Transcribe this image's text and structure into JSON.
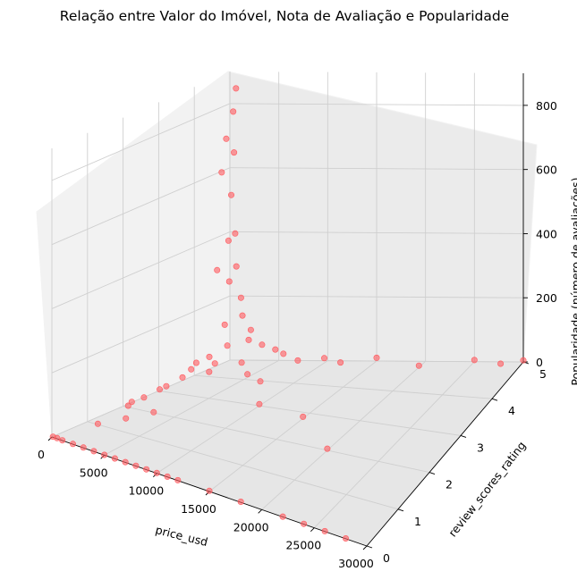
{
  "chart_data": {
    "type": "scatter",
    "projection": "3d",
    "title": "Relação entre Valor do Imóvel, Nota de Avaliação e Popularidade",
    "xlabel": "price_usd",
    "ylabel": "review_scores_rating",
    "zlabel": "Popularidade (número de avaliações)",
    "xlim": [
      0,
      30000
    ],
    "ylim": [
      0,
      5
    ],
    "zlim": [
      0,
      900
    ],
    "xticks": [
      "0",
      "5000",
      "10000",
      "15000",
      "20000",
      "25000",
      "30000"
    ],
    "yticks": [
      "0",
      "1",
      "2",
      "3",
      "4",
      "5"
    ],
    "zticks": [
      "0",
      "200",
      "400",
      "600",
      "800"
    ],
    "grid": true,
    "color": "#ff5a5f",
    "alpha": 0.6,
    "series": [
      {
        "description_points": [
          [
            100,
            4.9,
            50
          ],
          [
            200,
            4.8,
            120
          ],
          [
            300,
            4.9,
            250
          ],
          [
            400,
            4.85,
            380
          ],
          [
            500,
            4.9,
            520
          ],
          [
            600,
            4.95,
            650
          ],
          [
            700,
            4.9,
            780
          ],
          [
            800,
            4.95,
            850
          ],
          [
            250,
            4.7,
            600
          ],
          [
            350,
            4.8,
            700
          ],
          [
            150,
            4.6,
            300
          ],
          [
            900,
            4.9,
            400
          ],
          [
            1200,
            4.85,
            300
          ],
          [
            1500,
            4.9,
            200
          ],
          [
            2000,
            4.8,
            150
          ],
          [
            2500,
            4.9,
            100
          ],
          [
            3000,
            4.7,
            80
          ],
          [
            4000,
            4.8,
            60
          ],
          [
            5000,
            4.9,
            40
          ],
          [
            6000,
            4.85,
            30
          ],
          [
            8000,
            4.7,
            20
          ],
          [
            10000,
            4.9,
            15
          ],
          [
            12000,
            4.8,
            10
          ],
          [
            15000,
            5.0,
            10
          ],
          [
            20000,
            4.8,
            5
          ],
          [
            25000,
            5.0,
            5
          ],
          [
            28000,
            4.9,
            5
          ],
          [
            30000,
            5.0,
            5
          ],
          [
            200,
            4.0,
            40
          ],
          [
            400,
            3.8,
            30
          ],
          [
            600,
            3.5,
            20
          ],
          [
            800,
            4.2,
            50
          ],
          [
            1000,
            4.3,
            25
          ],
          [
            1500,
            4.0,
            15
          ],
          [
            3000,
            4.5,
            20
          ],
          [
            5000,
            4.1,
            10
          ],
          [
            7000,
            3.9,
            5
          ],
          [
            10000,
            3.0,
            5
          ],
          [
            15000,
            2.8,
            5
          ],
          [
            20000,
            2.0,
            5
          ],
          [
            100,
            3.0,
            5
          ],
          [
            300,
            2.5,
            5
          ],
          [
            500,
            2.0,
            5
          ],
          [
            150,
            2.2,
            5
          ],
          [
            50,
            3.2,
            5
          ],
          [
            100,
            0,
            2
          ],
          [
            500,
            0,
            2
          ],
          [
            1000,
            0,
            1
          ],
          [
            2000,
            0,
            1
          ],
          [
            3000,
            0,
            1
          ],
          [
            4000,
            0,
            1
          ],
          [
            5000,
            0,
            1
          ],
          [
            6000,
            0,
            1
          ],
          [
            7000,
            0,
            1
          ],
          [
            8000,
            0,
            1
          ],
          [
            9000,
            0,
            1
          ],
          [
            10000,
            0,
            1
          ],
          [
            11000,
            0,
            1
          ],
          [
            12000,
            0,
            1
          ],
          [
            15000,
            0,
            2
          ],
          [
            18000,
            0,
            2
          ],
          [
            22000,
            0,
            1
          ],
          [
            24000,
            0,
            1
          ],
          [
            26000,
            0,
            1
          ],
          [
            28000,
            0,
            1
          ],
          [
            1000,
            1.0,
            2
          ],
          [
            2000,
            1.5,
            2
          ],
          [
            3000,
            2.0,
            2
          ]
        ]
      }
    ]
  }
}
